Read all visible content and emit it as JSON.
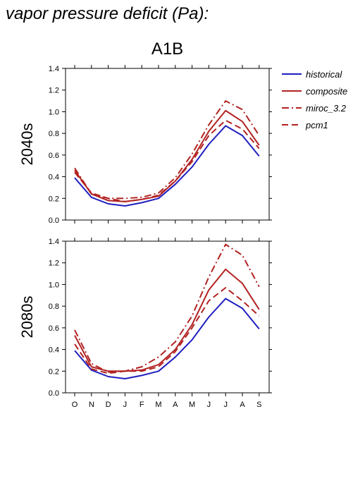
{
  "page_title": "vapor pressure deficit (Pa):",
  "chart_data": {
    "type": "line",
    "title": "A1B",
    "x_categories": [
      "O",
      "N",
      "D",
      "J",
      "F",
      "M",
      "A",
      "M",
      "J",
      "J",
      "A",
      "S"
    ],
    "yticks": [
      "0.0",
      "0.2",
      "0.4",
      "0.6",
      "0.8",
      "1.0",
      "1.2",
      "1.4"
    ],
    "ylim": [
      0,
      1.4
    ],
    "legend_position": "right",
    "legend": [
      {
        "name": "historical",
        "color": "#1f1fbf",
        "dash": "solid"
      },
      {
        "name": "composite",
        "color": "#b22222",
        "dash": "solid"
      },
      {
        "name": "miroc_3.2",
        "color": "#b22222",
        "dash": "dashdot"
      },
      {
        "name": "pcm1",
        "color": "#b22222",
        "dash": "dash"
      }
    ],
    "panels": [
      {
        "label": "2040s",
        "series": [
          {
            "name": "historical",
            "values": [
              0.39,
              0.21,
              0.15,
              0.13,
              0.16,
              0.2,
              0.33,
              0.49,
              0.7,
              0.87,
              0.78,
              0.59
            ]
          },
          {
            "name": "composite",
            "values": [
              0.46,
              0.24,
              0.18,
              0.17,
              0.19,
              0.22,
              0.36,
              0.56,
              0.82,
              1.01,
              0.91,
              0.69
            ]
          },
          {
            "name": "miroc_3.2",
            "values": [
              0.48,
              0.24,
              0.2,
              0.2,
              0.21,
              0.25,
              0.39,
              0.61,
              0.88,
              1.1,
              1.02,
              0.78
            ]
          },
          {
            "name": "pcm1",
            "values": [
              0.44,
              0.25,
              0.2,
              0.17,
              0.19,
              0.23,
              0.36,
              0.54,
              0.78,
              0.92,
              0.84,
              0.66
            ]
          }
        ]
      },
      {
        "label": "2080s",
        "series": [
          {
            "name": "historical",
            "values": [
              0.39,
              0.21,
              0.15,
              0.13,
              0.16,
              0.2,
              0.33,
              0.49,
              0.7,
              0.87,
              0.78,
              0.59
            ]
          },
          {
            "name": "composite",
            "values": [
              0.53,
              0.24,
              0.2,
              0.2,
              0.21,
              0.26,
              0.4,
              0.63,
              0.95,
              1.14,
              1.01,
              0.77
            ]
          },
          {
            "name": "miroc_3.2",
            "values": [
              0.58,
              0.27,
              0.19,
              0.2,
              0.24,
              0.33,
              0.47,
              0.71,
              1.07,
              1.37,
              1.27,
              0.98
            ]
          },
          {
            "name": "pcm1",
            "values": [
              0.45,
              0.22,
              0.18,
              0.2,
              0.2,
              0.24,
              0.38,
              0.6,
              0.85,
              0.97,
              0.85,
              0.71
            ]
          }
        ]
      }
    ]
  }
}
